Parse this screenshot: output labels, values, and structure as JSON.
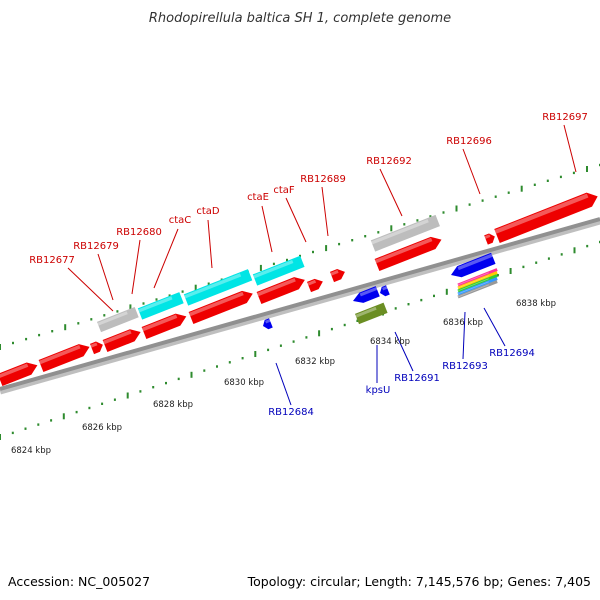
{
  "map": {
    "title": "Rhodopirellula baltica SH 1, complete genome",
    "accession_text": "Accession: NC_005027",
    "summary_text": "Topology: circular; Length: 7,145,576 bp; Genes: 7,405"
  },
  "scale": {
    "unit": "kbp",
    "labels": [
      "6824 kbp",
      "6826 kbp",
      "6828 kbp",
      "6830 kbp",
      "6832 kbp",
      "6834 kbp",
      "6836 kbp",
      "6838 kbp"
    ]
  },
  "colors": {
    "forward_label": "#cc0000",
    "reverse_label": "#0000bb",
    "cds": "#ee0000",
    "highlight_cds": "#00e5e5",
    "reverse_cds": "#0000ee",
    "other_feature": "#bdbdbd",
    "olive_feature": "#6b8e23",
    "tick": "#2e8b2e",
    "backbone": "#909090"
  },
  "forward_labels": [
    {
      "text": "RB12677"
    },
    {
      "text": "RB12679"
    },
    {
      "text": "RB12680"
    },
    {
      "text": "ctaC"
    },
    {
      "text": "ctaD"
    },
    {
      "text": "ctaE"
    },
    {
      "text": "ctaF"
    },
    {
      "text": "RB12689"
    },
    {
      "text": "RB12692"
    },
    {
      "text": "RB12696"
    },
    {
      "text": "RB12697"
    }
  ],
  "reverse_labels": [
    {
      "text": "RB12684"
    },
    {
      "text": "kpsU"
    },
    {
      "text": "RB12691"
    },
    {
      "text": "RB12693"
    },
    {
      "text": "RB12694"
    }
  ]
}
